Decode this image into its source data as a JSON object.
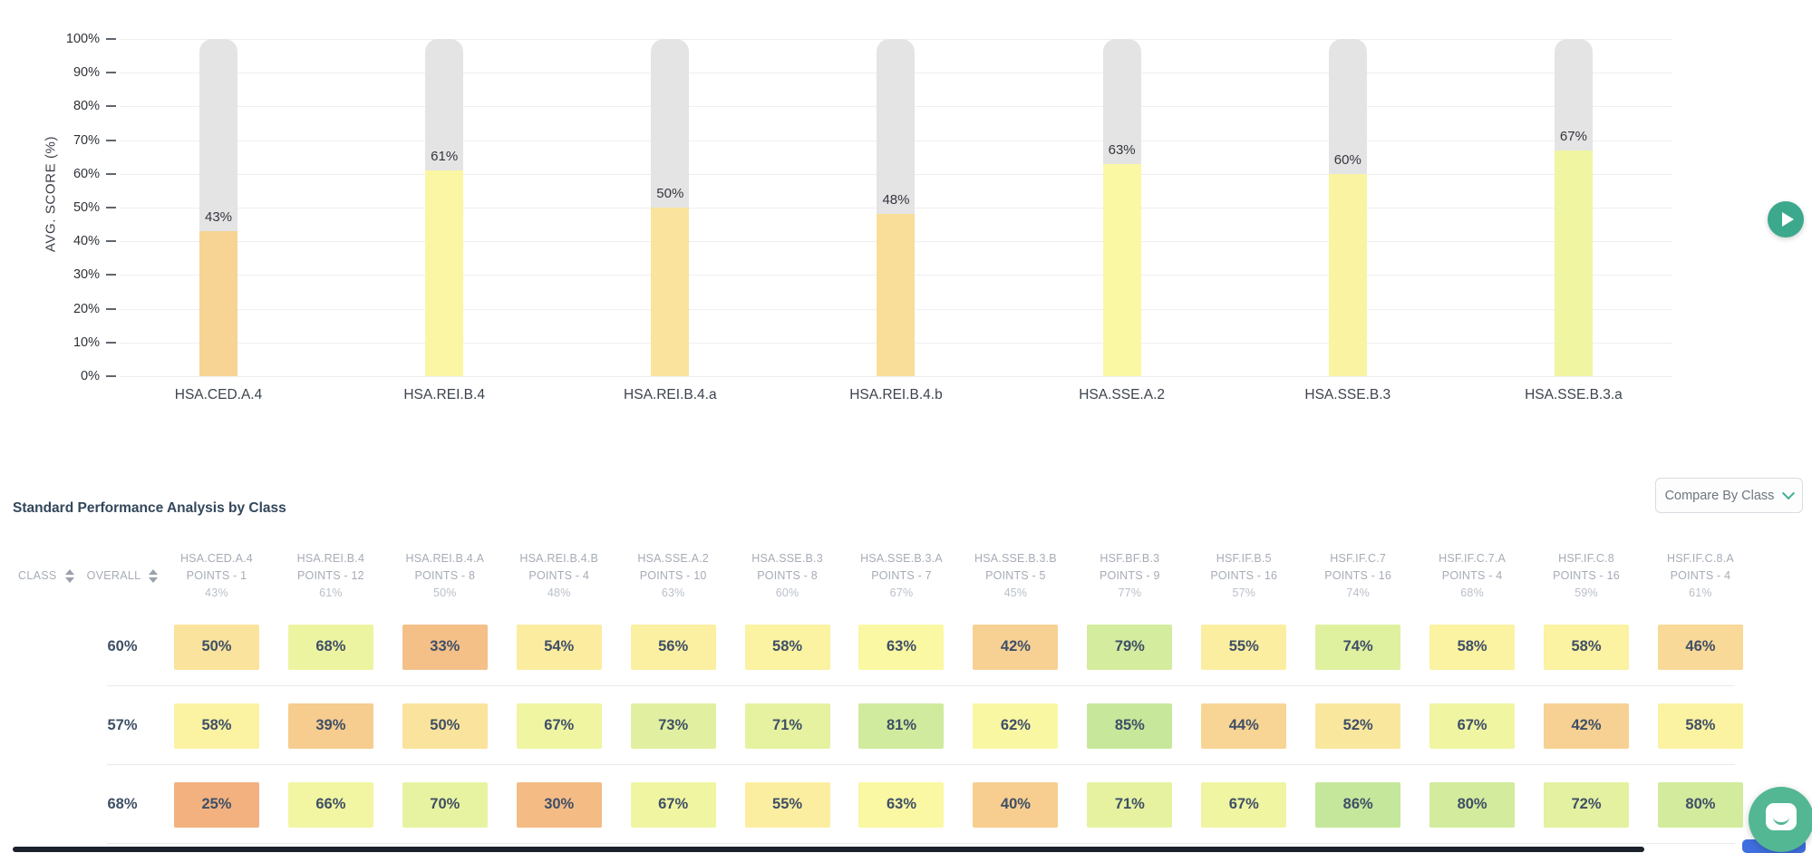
{
  "chart_data": {
    "type": "bar",
    "title": "",
    "ylabel": "AVG. SCORE (%)",
    "xlabel": "",
    "ylim": [
      0,
      100
    ],
    "grid": true,
    "legend": false,
    "y_ticks": [
      "100%",
      "90%",
      "80%",
      "70%",
      "60%",
      "50%",
      "40%",
      "30%",
      "20%",
      "10%",
      "0%"
    ],
    "categories": [
      "HSA.CED.A.4",
      "HSA.REI.B.4",
      "HSA.REI.B.4.a",
      "HSA.REI.B.4.b",
      "HSA.SSE.A.2",
      "HSA.SSE.B.3",
      "HSA.SSE.B.3.a"
    ],
    "values": [
      43,
      61,
      50,
      48,
      63,
      60,
      67
    ],
    "value_suffix": "%",
    "track_color": "#e4e4e5"
  },
  "carousel": {
    "next_label": "next"
  },
  "table": {
    "title": "Standard Performance Analysis by Class",
    "compare_button_label": "Compare By Class",
    "class_header": "CLASS",
    "overall_header": "OVERALL",
    "columns": [
      {
        "name": "HSA.CED.A.4",
        "points": "POINTS - 1",
        "avg": "43%"
      },
      {
        "name": "HSA.REI.B.4",
        "points": "POINTS - 12",
        "avg": "61%"
      },
      {
        "name": "HSA.REI.B.4.A",
        "points": "POINTS - 8",
        "avg": "50%"
      },
      {
        "name": "HSA.REI.B.4.B",
        "points": "POINTS - 4",
        "avg": "48%"
      },
      {
        "name": "HSA.SSE.A.2",
        "points": "POINTS - 10",
        "avg": "63%"
      },
      {
        "name": "HSA.SSE.B.3",
        "points": "POINTS - 8",
        "avg": "60%"
      },
      {
        "name": "HSA.SSE.B.3.A",
        "points": "POINTS - 7",
        "avg": "67%"
      },
      {
        "name": "HSA.SSE.B.3.B",
        "points": "POINTS - 5",
        "avg": "45%"
      },
      {
        "name": "HSF.BF.B.3",
        "points": "POINTS - 9",
        "avg": "77%"
      },
      {
        "name": "HSF.IF.B.5",
        "points": "POINTS - 16",
        "avg": "57%"
      },
      {
        "name": "HSF.IF.C.7",
        "points": "POINTS - 16",
        "avg": "74%"
      },
      {
        "name": "HSF.IF.C.7.A",
        "points": "POINTS - 4",
        "avg": "68%"
      },
      {
        "name": "HSF.IF.C.8",
        "points": "POINTS - 16",
        "avg": "59%"
      },
      {
        "name": "HSF.IF.C.8.A",
        "points": "POINTS - 4",
        "avg": "61%"
      }
    ],
    "rows": [
      {
        "class_name": "",
        "overall": "60%",
        "scores": [
          50,
          68,
          33,
          54,
          56,
          58,
          63,
          42,
          79,
          55,
          74,
          58,
          58,
          46
        ]
      },
      {
        "class_name": "",
        "overall": "57%",
        "scores": [
          58,
          39,
          50,
          67,
          73,
          71,
          81,
          62,
          85,
          44,
          52,
          67,
          42,
          58
        ]
      },
      {
        "class_name": "",
        "overall": "68%",
        "scores": [
          25,
          66,
          70,
          30,
          67,
          55,
          63,
          40,
          71,
          67,
          86,
          80,
          72,
          80
        ]
      }
    ]
  },
  "colors": {
    "accent_green": "#3ca88c",
    "chevron_green": "#3fae92",
    "chat_bg": "#53b794",
    "blue_peek": "#3f6ede",
    "bottom_bar": "#1c222c",
    "heatmap_stops": [
      {
        "value": 25,
        "color": "#f2b17f"
      },
      {
        "value": 45,
        "color": "#f8d796"
      },
      {
        "value": 55,
        "color": "#fbeea1"
      },
      {
        "value": 63,
        "color": "#faf8a3"
      },
      {
        "value": 72,
        "color": "#e3f1a0"
      },
      {
        "value": 86,
        "color": "#c5e79b"
      }
    ]
  }
}
